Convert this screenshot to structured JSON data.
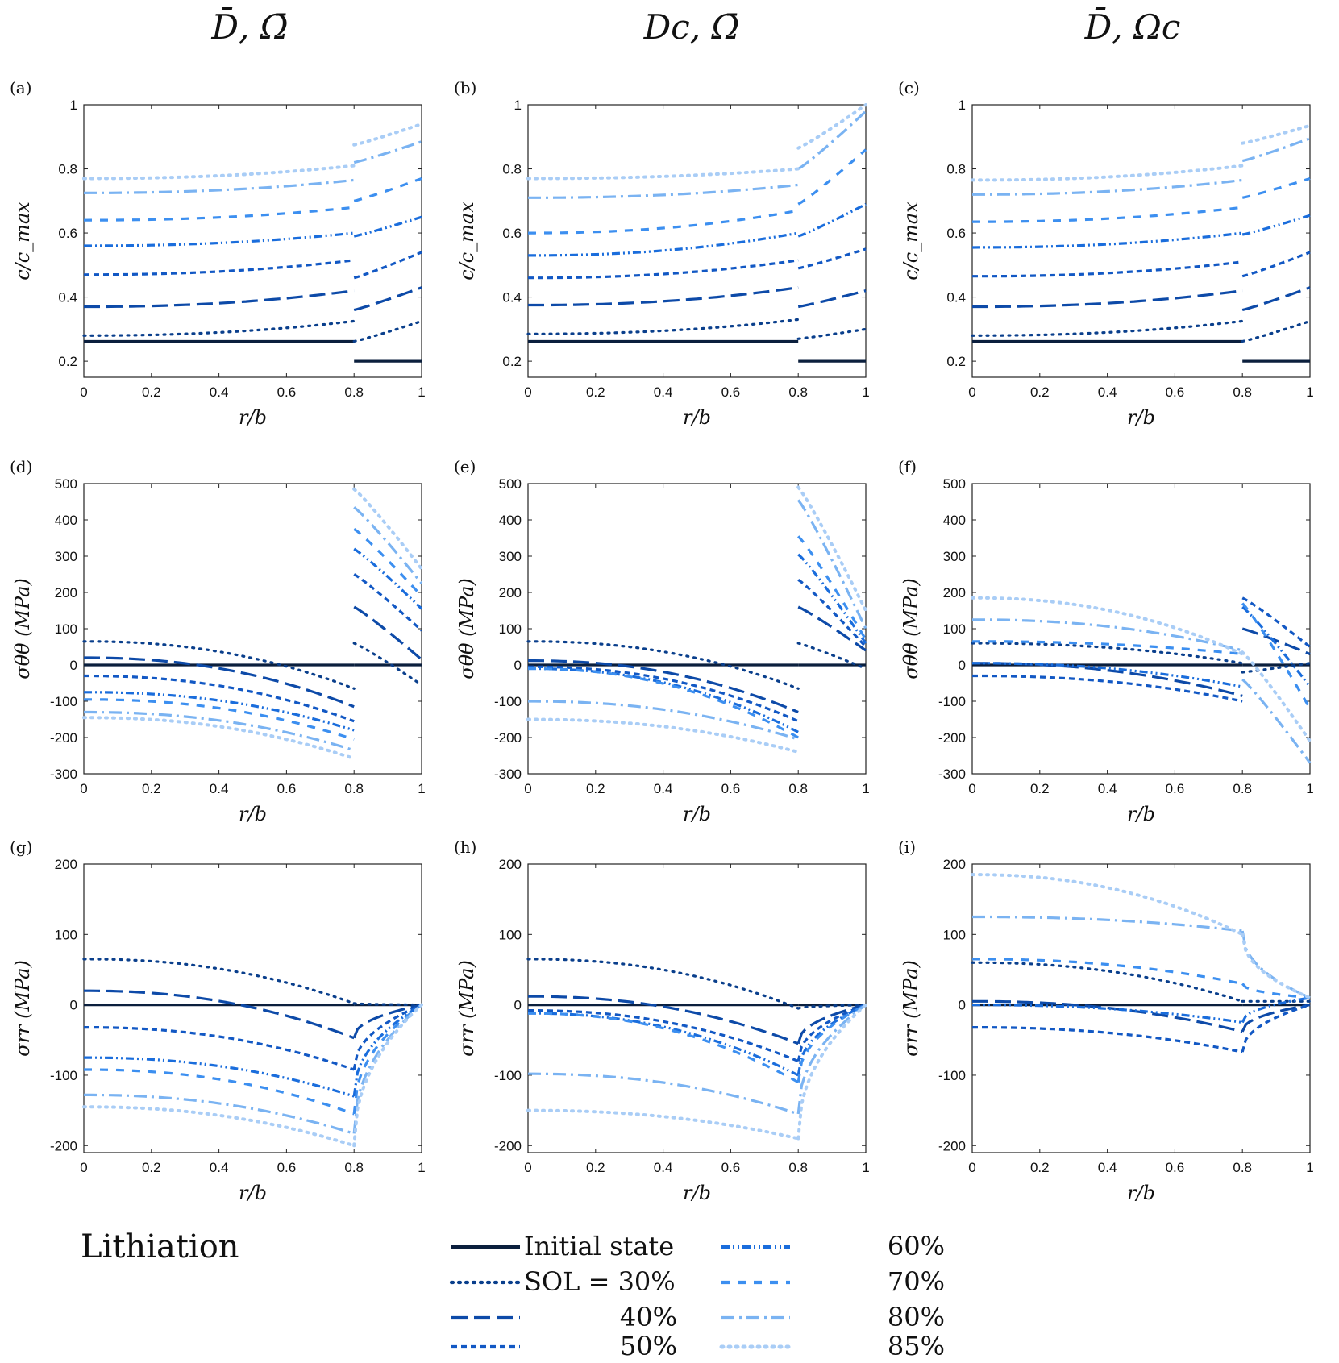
{
  "column_titles": [
    "D̄,  Ω̄",
    "Dc,  Ω̄",
    "D̄,  Ωc"
  ],
  "legend": {
    "title": "Lithiation",
    "entries": [
      {
        "key": "init",
        "label": "Initial state",
        "color": "#0b1f3d",
        "dash": "solid"
      },
      {
        "key": "s30",
        "label": "SOL  = 30%",
        "color": "#0a3f8c",
        "dash": "dot"
      },
      {
        "key": "s40",
        "label": "40%",
        "color": "#0d4aa8",
        "dash": "longdash"
      },
      {
        "key": "s50",
        "label": "50%",
        "color": "#1258c4",
        "dash": "shortdash"
      },
      {
        "key": "s60",
        "label": "60%",
        "color": "#1a6ddc",
        "dash": "dashdotdot"
      },
      {
        "key": "s70",
        "label": "70%",
        "color": "#3c8ff0",
        "dash": "dash"
      },
      {
        "key": "s80",
        "label": "80%",
        "color": "#7ab3f2",
        "dash": "dashdot"
      },
      {
        "key": "s85",
        "label": "85%",
        "color": "#a9cdf6",
        "dash": "dot"
      }
    ]
  },
  "chart_data": [
    {
      "id": "a",
      "label": "(a)",
      "type": "line",
      "xlabel": "r/b",
      "ylabel": "c/c_max",
      "xlim": [
        0,
        1
      ],
      "ylim": [
        0.15,
        1.0
      ],
      "xticks": [
        "0",
        "0.2",
        "0.4",
        "0.6",
        "0.8",
        "1"
      ],
      "yticks": [
        "0.2",
        "0.4",
        "0.6",
        "0.8",
        "1"
      ],
      "ytick_values": [
        0.2,
        0.4,
        0.6,
        0.8,
        1.0
      ],
      "series": [
        {
          "key": "init",
          "core": [
            0.262,
            0.262
          ],
          "shell": [
            0.2,
            0.2
          ]
        },
        {
          "key": "s30",
          "core": [
            0.28,
            0.325
          ],
          "shell": [
            0.262,
            0.325
          ]
        },
        {
          "key": "s40",
          "core": [
            0.37,
            0.42
          ],
          "shell": [
            0.36,
            0.43
          ]
        },
        {
          "key": "s50",
          "core": [
            0.47,
            0.515
          ],
          "shell": [
            0.46,
            0.54
          ]
        },
        {
          "key": "s60",
          "core": [
            0.56,
            0.6
          ],
          "shell": [
            0.59,
            0.65
          ]
        },
        {
          "key": "s70",
          "core": [
            0.64,
            0.68
          ],
          "shell": [
            0.7,
            0.77
          ]
        },
        {
          "key": "s80",
          "core": [
            0.725,
            0.765
          ],
          "shell": [
            0.82,
            0.885
          ]
        },
        {
          "key": "s85",
          "core": [
            0.77,
            0.81
          ],
          "shell": [
            0.875,
            0.94
          ]
        }
      ]
    },
    {
      "id": "b",
      "label": "(b)",
      "type": "line",
      "xlabel": "r/b",
      "ylabel": "c/c_max",
      "xlim": [
        0,
        1
      ],
      "ylim": [
        0.15,
        1.0
      ],
      "xticks": [
        "0",
        "0.2",
        "0.4",
        "0.6",
        "0.8",
        "1"
      ],
      "yticks": [
        "0.2",
        "0.4",
        "0.6",
        "0.8",
        "1"
      ],
      "ytick_values": [
        0.2,
        0.4,
        0.6,
        0.8,
        1.0
      ],
      "series": [
        {
          "key": "init",
          "core": [
            0.262,
            0.262
          ],
          "shell": [
            0.2,
            0.2
          ]
        },
        {
          "key": "s30",
          "core": [
            0.285,
            0.33
          ],
          "shell": [
            0.27,
            0.3
          ]
        },
        {
          "key": "s40",
          "core": [
            0.375,
            0.43
          ],
          "shell": [
            0.37,
            0.42
          ]
        },
        {
          "key": "s50",
          "core": [
            0.46,
            0.515
          ],
          "shell": [
            0.49,
            0.55
          ]
        },
        {
          "key": "s60",
          "core": [
            0.53,
            0.6
          ],
          "shell": [
            0.59,
            0.69
          ]
        },
        {
          "key": "s70",
          "core": [
            0.6,
            0.67
          ],
          "shell": [
            0.69,
            0.86
          ]
        },
        {
          "key": "s80",
          "core": [
            0.71,
            0.75
          ],
          "shell": [
            0.8,
            0.98
          ]
        },
        {
          "key": "s85",
          "core": [
            0.77,
            0.8
          ],
          "shell": [
            0.865,
            1.0
          ]
        }
      ]
    },
    {
      "id": "c",
      "label": "(c)",
      "type": "line",
      "xlabel": "r/b",
      "ylabel": "c/c_max",
      "xlim": [
        0,
        1
      ],
      "ylim": [
        0.15,
        1.0
      ],
      "xticks": [
        "0",
        "0.2",
        "0.4",
        "0.6",
        "0.8",
        "1"
      ],
      "yticks": [
        "0.2",
        "0.4",
        "0.6",
        "0.8",
        "1"
      ],
      "ytick_values": [
        0.2,
        0.4,
        0.6,
        0.8,
        1.0
      ],
      "series": [
        {
          "key": "init",
          "core": [
            0.262,
            0.262
          ],
          "shell": [
            0.2,
            0.2
          ]
        },
        {
          "key": "s30",
          "core": [
            0.28,
            0.325
          ],
          "shell": [
            0.262,
            0.325
          ]
        },
        {
          "key": "s40",
          "core": [
            0.37,
            0.42
          ],
          "shell": [
            0.36,
            0.43
          ]
        },
        {
          "key": "s50",
          "core": [
            0.465,
            0.51
          ],
          "shell": [
            0.465,
            0.54
          ]
        },
        {
          "key": "s60",
          "core": [
            0.555,
            0.6
          ],
          "shell": [
            0.595,
            0.655
          ]
        },
        {
          "key": "s70",
          "core": [
            0.635,
            0.68
          ],
          "shell": [
            0.71,
            0.77
          ]
        },
        {
          "key": "s80",
          "core": [
            0.72,
            0.765
          ],
          "shell": [
            0.825,
            0.895
          ]
        },
        {
          "key": "s85",
          "core": [
            0.765,
            0.81
          ],
          "shell": [
            0.88,
            0.935
          ]
        }
      ]
    },
    {
      "id": "d",
      "label": "(d)",
      "type": "line",
      "xlabel": "r/b",
      "ylabel": "σθθ (MPa)",
      "xlim": [
        0,
        1
      ],
      "ylim": [
        -300,
        500
      ],
      "xticks": [
        "0",
        "0.2",
        "0.4",
        "0.6",
        "0.8",
        "1"
      ],
      "yticks": [
        "-300",
        "-200",
        "-100",
        "0",
        "100",
        "200",
        "300",
        "400",
        "500"
      ],
      "ytick_values": [
        -300,
        -200,
        -100,
        0,
        100,
        200,
        300,
        400,
        500
      ],
      "series": [
        {
          "key": "init",
          "core": [
            0,
            0
          ],
          "shell": [
            0,
            0
          ]
        },
        {
          "key": "s30",
          "core": [
            65,
            -65
          ],
          "shell": [
            60,
            -55
          ]
        },
        {
          "key": "s40",
          "core": [
            20,
            -115
          ],
          "shell": [
            160,
            15
          ]
        },
        {
          "key": "s50",
          "core": [
            -30,
            -155
          ],
          "shell": [
            250,
            95
          ]
        },
        {
          "key": "s60",
          "core": [
            -75,
            -180
          ],
          "shell": [
            320,
            155
          ]
        },
        {
          "key": "s70",
          "core": [
            -95,
            -205
          ],
          "shell": [
            375,
            190
          ]
        },
        {
          "key": "s80",
          "core": [
            -130,
            -235
          ],
          "shell": [
            435,
            225
          ]
        },
        {
          "key": "s85",
          "core": [
            -145,
            -258
          ],
          "shell": [
            485,
            265
          ]
        }
      ]
    },
    {
      "id": "e",
      "label": "(e)",
      "type": "line",
      "xlabel": "r/b",
      "ylabel": "σθθ (MPa)",
      "xlim": [
        0,
        1
      ],
      "ylim": [
        -300,
        500
      ],
      "xticks": [
        "0",
        "0.2",
        "0.4",
        "0.6",
        "0.8",
        "1"
      ],
      "yticks": [
        "-300",
        "-200",
        "-100",
        "0",
        "100",
        "200",
        "300",
        "400",
        "500"
      ],
      "ytick_values": [
        -300,
        -200,
        -100,
        0,
        100,
        200,
        300,
        400,
        500
      ],
      "series": [
        {
          "key": "init",
          "core": [
            0,
            0
          ],
          "shell": [
            0,
            0
          ]
        },
        {
          "key": "s30",
          "core": [
            65,
            -65
          ],
          "shell": [
            60,
            -10
          ]
        },
        {
          "key": "s40",
          "core": [
            12,
            -130
          ],
          "shell": [
            160,
            40
          ]
        },
        {
          "key": "s50",
          "core": [
            -5,
            -155
          ],
          "shell": [
            235,
            50
          ]
        },
        {
          "key": "s60",
          "core": [
            -10,
            -185
          ],
          "shell": [
            305,
            60
          ]
        },
        {
          "key": "s70",
          "core": [
            -10,
            -200
          ],
          "shell": [
            355,
            70
          ]
        },
        {
          "key": "s80",
          "core": [
            -100,
            -205
          ],
          "shell": [
            455,
            100
          ]
        },
        {
          "key": "s85",
          "core": [
            -150,
            -240
          ],
          "shell": [
            490,
            150
          ]
        }
      ]
    },
    {
      "id": "f",
      "label": "(f)",
      "type": "line",
      "xlabel": "r/b",
      "ylabel": "σθθ (MPa)",
      "xlim": [
        0,
        1
      ],
      "ylim": [
        -300,
        500
      ],
      "xticks": [
        "0",
        "0.2",
        "0.4",
        "0.6",
        "0.8",
        "1"
      ],
      "yticks": [
        "-300",
        "-200",
        "-100",
        "0",
        "100",
        "200",
        "300",
        "400",
        "500"
      ],
      "ytick_values": [
        -300,
        -200,
        -100,
        0,
        100,
        200,
        300,
        400,
        500
      ],
      "series": [
        {
          "key": "init",
          "core": [
            0,
            0
          ],
          "shell": [
            0,
            0
          ]
        },
        {
          "key": "s30",
          "core": [
            60,
            5
          ],
          "shell": [
            -20,
            5
          ]
        },
        {
          "key": "s40",
          "core": [
            5,
            -85
          ],
          "shell": [
            100,
            30
          ]
        },
        {
          "key": "s50",
          "core": [
            -30,
            -100
          ],
          "shell": [
            185,
            50
          ]
        },
        {
          "key": "s60",
          "core": [
            5,
            -60
          ],
          "shell": [
            160,
            -60
          ]
        },
        {
          "key": "s70",
          "core": [
            65,
            30
          ],
          "shell": [
            170,
            -120
          ]
        },
        {
          "key": "s80",
          "core": [
            125,
            40
          ],
          "shell": [
            -40,
            -270
          ]
        },
        {
          "key": "s85",
          "core": [
            185,
            30
          ],
          "shell": [
            35,
            -210
          ]
        }
      ]
    },
    {
      "id": "g",
      "label": "(g)",
      "type": "line",
      "xlabel": "r/b",
      "ylabel": "σrr (MPa)",
      "xlim": [
        0,
        1
      ],
      "ylim": [
        -210,
        200
      ],
      "xticks": [
        "0",
        "0.2",
        "0.4",
        "0.6",
        "0.8",
        "1"
      ],
      "yticks": [
        "-200",
        "-100",
        "0",
        "100",
        "200"
      ],
      "ytick_values": [
        -200,
        -100,
        0,
        100,
        200
      ],
      "series": [
        {
          "key": "init",
          "core": [
            0,
            0
          ],
          "shell": [
            0,
            0
          ]
        },
        {
          "key": "s30",
          "core": [
            65,
            2
          ],
          "shell": [
            2,
            0
          ]
        },
        {
          "key": "s40",
          "core": [
            20,
            -47
          ],
          "shell": [
            -47,
            0
          ]
        },
        {
          "key": "s50",
          "core": [
            -32,
            -92
          ],
          "shell": [
            -92,
            0
          ]
        },
        {
          "key": "s60",
          "core": [
            -75,
            -130
          ],
          "shell": [
            -130,
            0
          ]
        },
        {
          "key": "s70",
          "core": [
            -92,
            -155
          ],
          "shell": [
            -155,
            0
          ]
        },
        {
          "key": "s80",
          "core": [
            -128,
            -183
          ],
          "shell": [
            -183,
            0
          ]
        },
        {
          "key": "s85",
          "core": [
            -145,
            -200
          ],
          "shell": [
            -200,
            0
          ]
        }
      ]
    },
    {
      "id": "h",
      "label": "(h)",
      "type": "line",
      "xlabel": "r/b",
      "ylabel": "σrr (MPa)",
      "xlim": [
        0,
        1
      ],
      "ylim": [
        -210,
        200
      ],
      "xticks": [
        "0",
        "0.2",
        "0.4",
        "0.6",
        "0.8",
        "1"
      ],
      "yticks": [
        "-200",
        "-100",
        "0",
        "100",
        "200"
      ],
      "ytick_values": [
        -200,
        -100,
        0,
        100,
        200
      ],
      "series": [
        {
          "key": "init",
          "core": [
            0,
            0
          ],
          "shell": [
            0,
            0
          ]
        },
        {
          "key": "s30",
          "core": [
            65,
            -5
          ],
          "shell": [
            -5,
            0
          ]
        },
        {
          "key": "s40",
          "core": [
            12,
            -55
          ],
          "shell": [
            -55,
            0
          ]
        },
        {
          "key": "s50",
          "core": [
            -8,
            -80
          ],
          "shell": [
            -80,
            0
          ]
        },
        {
          "key": "s60",
          "core": [
            -12,
            -100
          ],
          "shell": [
            -100,
            0
          ]
        },
        {
          "key": "s70",
          "core": [
            -12,
            -110
          ],
          "shell": [
            -110,
            0
          ]
        },
        {
          "key": "s80",
          "core": [
            -98,
            -155
          ],
          "shell": [
            -155,
            0
          ]
        },
        {
          "key": "s85",
          "core": [
            -150,
            -190
          ],
          "shell": [
            -190,
            0
          ]
        }
      ]
    },
    {
      "id": "i",
      "label": "(i)",
      "type": "line",
      "xlabel": "r/b",
      "ylabel": "σrr (MPa)",
      "xlim": [
        0,
        1
      ],
      "ylim": [
        -210,
        200
      ],
      "xticks": [
        "0",
        "0.2",
        "0.4",
        "0.6",
        "0.8",
        "1"
      ],
      "yticks": [
        "-200",
        "-100",
        "0",
        "100",
        "200"
      ],
      "ytick_values": [
        -200,
        -100,
        0,
        100,
        200
      ],
      "series": [
        {
          "key": "init",
          "core": [
            0,
            0
          ],
          "shell": [
            0,
            0
          ]
        },
        {
          "key": "s30",
          "core": [
            60,
            5
          ],
          "shell": [
            5,
            5
          ]
        },
        {
          "key": "s40",
          "core": [
            5,
            -38
          ],
          "shell": [
            -38,
            0
          ]
        },
        {
          "key": "s50",
          "core": [
            -32,
            -67
          ],
          "shell": [
            -67,
            0
          ]
        },
        {
          "key": "s60",
          "core": [
            0,
            -25
          ],
          "shell": [
            -25,
            10
          ]
        },
        {
          "key": "s70",
          "core": [
            65,
            30
          ],
          "shell": [
            30,
            10
          ]
        },
        {
          "key": "s80",
          "core": [
            125,
            105
          ],
          "shell": [
            105,
            10
          ]
        },
        {
          "key": "s85",
          "core": [
            185,
            100
          ],
          "shell": [
            100,
            10
          ]
        }
      ]
    }
  ]
}
